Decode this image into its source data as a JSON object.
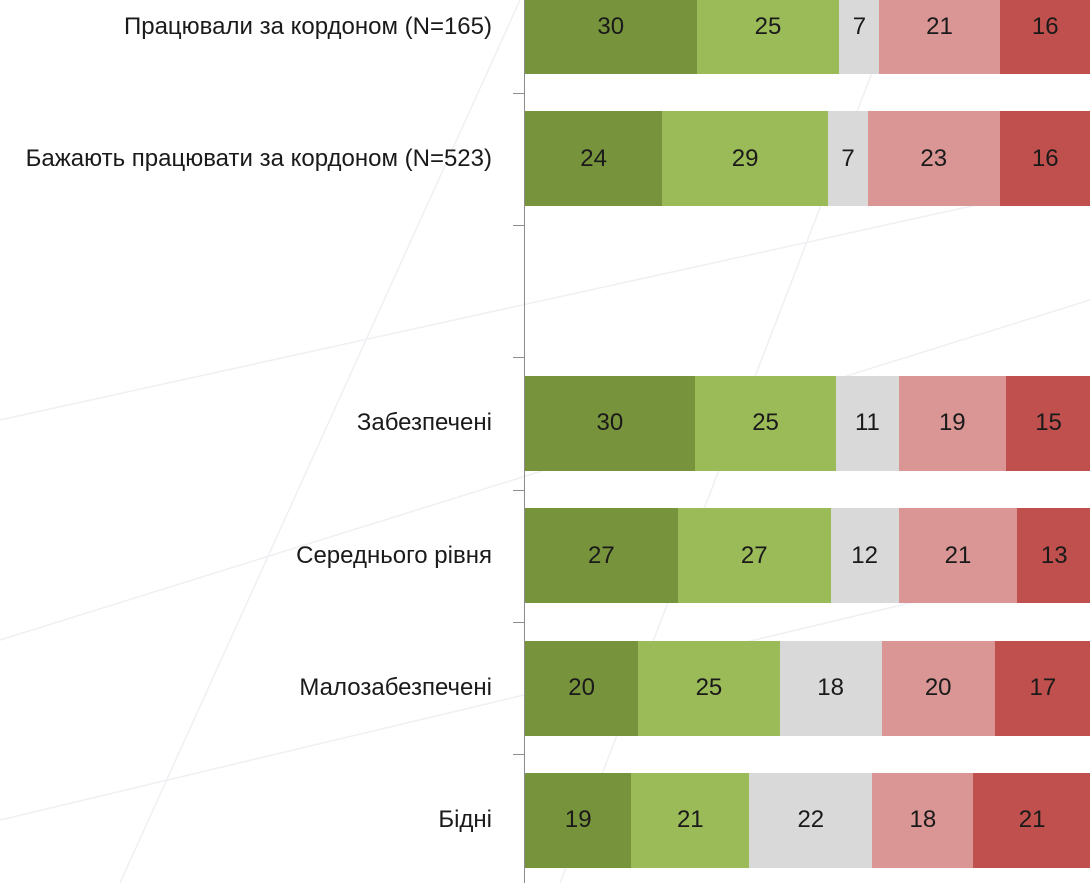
{
  "chart_data": {
    "type": "stacked_bar_horizontal_percent",
    "categories": [
      "Працювали за кордоном (N=165)",
      "Бажають працювати за кордоном (N=523)",
      null,
      "Забезпечені",
      "Середнього рівня",
      "Малозабезпечені",
      "Бідні"
    ],
    "series": [
      {
        "color": "#77933c",
        "values": [
          30,
          24,
          null,
          30,
          27,
          20,
          19
        ]
      },
      {
        "color": "#9bbb59",
        "values": [
          25,
          29,
          null,
          25,
          27,
          25,
          21
        ]
      },
      {
        "color": "#d9d9d9",
        "values": [
          7,
          7,
          null,
          11,
          12,
          18,
          22
        ]
      },
      {
        "color": "#d99694",
        "values": [
          21,
          23,
          null,
          19,
          21,
          20,
          18
        ]
      },
      {
        "color": "#c0504d",
        "values": [
          16,
          16,
          null,
          15,
          13,
          17,
          21
        ]
      }
    ]
  }
}
